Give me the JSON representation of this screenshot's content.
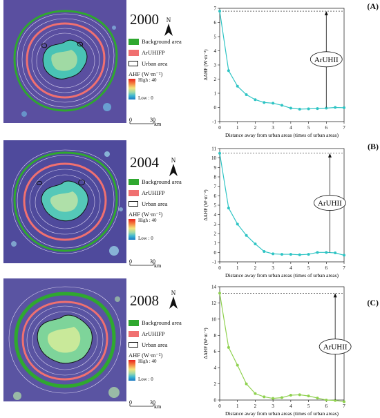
{
  "panels": [
    {
      "id": "A",
      "label": "(A)",
      "year": "2000",
      "compass": "N",
      "legend": {
        "background": "Background area",
        "ruhifp": "ArUHIFP",
        "urban": "Urban area",
        "ahf_title": "AHF (W·m⁻²)",
        "high": "High : 40",
        "low": "Low : 0"
      },
      "scale": {
        "zero": "0",
        "thirty": "30",
        "unit": "km"
      },
      "colors": {
        "line": "#2ec4c4",
        "background_area": "#2fa82f",
        "ruhifp": "#f07070"
      },
      "chart_data": {
        "type": "line",
        "x": [
          0,
          0.5,
          1,
          1.5,
          2,
          2.5,
          3,
          3.5,
          4,
          4.5,
          5,
          5.5,
          6,
          6.5,
          7
        ],
        "y": [
          6.8,
          2.6,
          1.5,
          0.9,
          0.55,
          0.35,
          0.3,
          0.15,
          -0.05,
          -0.12,
          -0.1,
          -0.08,
          -0.05,
          0.0,
          -0.02
        ],
        "xlim": [
          0,
          7
        ],
        "ylim": [
          -1,
          7
        ],
        "xticks": [
          0,
          1,
          2,
          3,
          4,
          5,
          6,
          7
        ],
        "yticks": [
          -1,
          0,
          1,
          2,
          3,
          4,
          5,
          6,
          7
        ],
        "xlabel": "Distance away from urban areas (times of urban areas)",
        "ylabel": "ΔAHF (W·m⁻²)",
        "reference_line_y": 6.8,
        "annotation": "ArUHII",
        "arrow_x": 6.0
      }
    },
    {
      "id": "B",
      "label": "(B)",
      "year": "2004",
      "compass": "N",
      "legend": {
        "background": "Background area",
        "ruhifp": "ArUHIFP",
        "urban": "Urban area",
        "ahf_title": "AHF (W·m⁻²)",
        "high": "High : 40",
        "low": "Low : 0"
      },
      "scale": {
        "zero": "0",
        "thirty": "30",
        "unit": "km"
      },
      "colors": {
        "line": "#2ec4c4",
        "background_area": "#2fa82f",
        "ruhifp": "#f07070"
      },
      "chart_data": {
        "type": "line",
        "x": [
          0,
          0.5,
          1,
          1.5,
          2,
          2.5,
          3,
          3.5,
          4,
          4.5,
          5,
          5.5,
          6,
          6.5,
          7
        ],
        "y": [
          10.5,
          4.7,
          3.0,
          1.8,
          0.9,
          0.1,
          -0.15,
          -0.2,
          -0.2,
          -0.25,
          -0.2,
          0.0,
          0.0,
          -0.05,
          -0.3
        ],
        "xlim": [
          0,
          7
        ],
        "ylim": [
          -1,
          11
        ],
        "xticks": [
          0,
          1,
          2,
          3,
          4,
          5,
          6,
          7
        ],
        "yticks": [
          -1,
          0,
          1,
          2,
          3,
          4,
          5,
          6,
          7,
          8,
          9,
          10,
          11
        ],
        "xlabel": "Distance away from urban areas (times of urban areas)",
        "ylabel": "ΔAHF (W·m⁻²)",
        "reference_line_y": 10.5,
        "annotation": "ArUHII",
        "arrow_x": 6.2
      }
    },
    {
      "id": "C",
      "label": "(C)",
      "year": "2008",
      "compass": "N",
      "legend": {
        "background": "Background area",
        "ruhifp": "ArUHIFP",
        "urban": "Urban area",
        "ahf_title": "AHF (W·m⁻²)",
        "high": "High : 40",
        "low": "Low : 0"
      },
      "scale": {
        "zero": "0",
        "thirty": "30",
        "unit": "km"
      },
      "colors": {
        "line": "#8fd14f",
        "background_area": "#2fa82f",
        "ruhifp": "#f07070"
      },
      "chart_data": {
        "type": "line",
        "x": [
          0,
          0.5,
          1,
          1.5,
          2,
          2.5,
          3,
          3.5,
          4,
          4.5,
          5,
          5.5,
          6,
          6.5,
          7
        ],
        "y": [
          13.2,
          6.5,
          4.3,
          2.0,
          0.8,
          0.4,
          0.2,
          0.3,
          0.6,
          0.65,
          0.5,
          0.25,
          0.0,
          -0.05,
          -0.2
        ],
        "xlim": [
          0,
          7
        ],
        "ylim": [
          0,
          14
        ],
        "xticks": [
          0,
          1,
          2,
          3,
          4,
          5,
          6,
          7
        ],
        "yticks": [
          0,
          2,
          4,
          6,
          8,
          10,
          12,
          14
        ],
        "xlabel": "Distance away from urban areas (times of urban areas)",
        "ylabel": "ΔAHF (W·m⁻²)",
        "reference_line_y": 13.2,
        "annotation": "ArUHII",
        "arrow_x": 6.5
      }
    }
  ]
}
